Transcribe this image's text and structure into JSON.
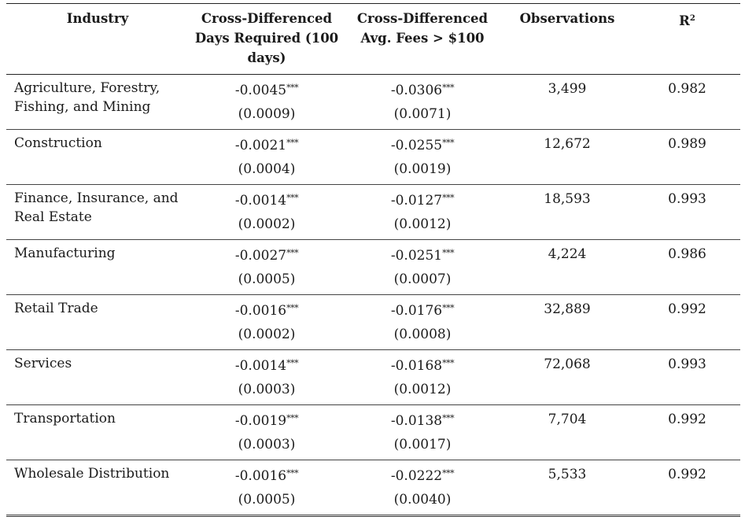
{
  "header": {
    "industry": "Industry",
    "days_line1": "Cross-Differenced",
    "days_line2": "Days Required (100 days)",
    "fees_line1": "Cross-Differenced",
    "fees_line2": "Avg. Fees > $100",
    "observations": "Observations",
    "r2_base": "R",
    "r2_sup": "2"
  },
  "rows": [
    {
      "industry": "Agriculture, Forestry, Fishing, and Mining",
      "days_coef": "-0.0045",
      "days_stars": "***",
      "days_se": "(0.0009)",
      "fees_coef": "-0.0306",
      "fees_stars": "***",
      "fees_se": "(0.0071)",
      "observations": "3,499",
      "r2": "0.982"
    },
    {
      "industry": "Construction",
      "days_coef": "-0.0021",
      "days_stars": "***",
      "days_se": "(0.0004)",
      "fees_coef": "-0.0255",
      "fees_stars": "***",
      "fees_se": "(0.0019)",
      "observations": "12,672",
      "r2": "0.989"
    },
    {
      "industry": "Finance, Insurance, and Real Estate",
      "days_coef": "-0.0014",
      "days_stars": "***",
      "days_se": "(0.0002)",
      "fees_coef": "-0.0127",
      "fees_stars": "***",
      "fees_se": "(0.0012)",
      "observations": "18,593",
      "r2": "0.993"
    },
    {
      "industry": "Manufacturing",
      "days_coef": "-0.0027",
      "days_stars": "***",
      "days_se": "(0.0005)",
      "fees_coef": "-0.0251",
      "fees_stars": "***",
      "fees_se": "(0.0007)",
      "observations": "4,224",
      "r2": "0.986"
    },
    {
      "industry": "Retail Trade",
      "days_coef": "-0.0016",
      "days_stars": "***",
      "days_se": "(0.0002)",
      "fees_coef": "-0.0176",
      "fees_stars": "***",
      "fees_se": "(0.0008)",
      "observations": "32,889",
      "r2": "0.992"
    },
    {
      "industry": "Services",
      "days_coef": "-0.0014",
      "days_stars": "***",
      "days_se": "(0.0003)",
      "fees_coef": "-0.0168",
      "fees_stars": "***",
      "fees_se": "(0.0012)",
      "observations": "72,068",
      "r2": "0.993"
    },
    {
      "industry": "Transportation",
      "days_coef": "-0.0019",
      "days_stars": "***",
      "days_se": "(0.0003)",
      "fees_coef": "-0.0138",
      "fees_stars": "***",
      "fees_se": "(0.0017)",
      "observations": "7,704",
      "r2": "0.992"
    },
    {
      "industry": "Wholesale Distribution",
      "days_coef": "-0.0016",
      "days_stars": "***",
      "days_se": "(0.0005)",
      "fees_coef": "-0.0222",
      "fees_stars": "***",
      "fees_se": "(0.0040)",
      "observations": "5,533",
      "r2": "0.992"
    }
  ]
}
